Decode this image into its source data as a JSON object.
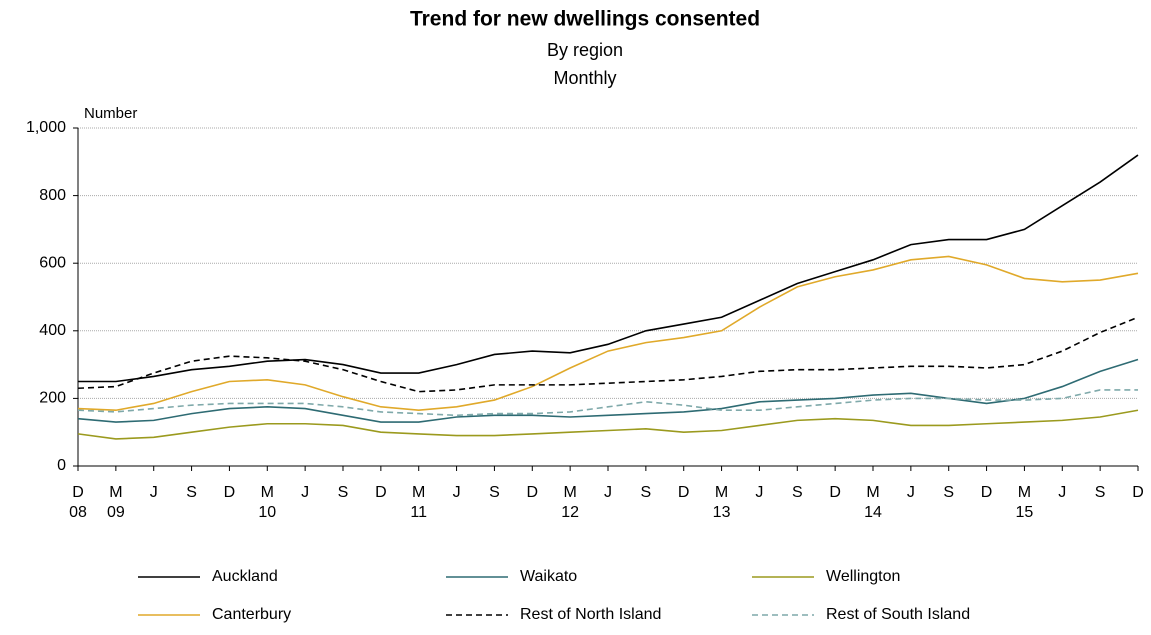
{
  "chart_data": {
    "type": "line",
    "title": "Trend for new dwellings consented",
    "subtitle": "By region",
    "subtitle2": "Monthly",
    "y_label": "Number",
    "categories": [
      "D",
      "M",
      "J",
      "S",
      "D",
      "M",
      "J",
      "S",
      "D",
      "M",
      "J",
      "S",
      "D",
      "M",
      "J",
      "S",
      "D",
      "M",
      "J",
      "S",
      "D",
      "M",
      "J",
      "S",
      "D",
      "M",
      "J",
      "S",
      "D"
    ],
    "x_sublabels": [
      "08",
      "09",
      null,
      null,
      null,
      "10",
      null,
      null,
      null,
      "11",
      null,
      null,
      null,
      "12",
      null,
      null,
      null,
      "13",
      null,
      null,
      null,
      "14",
      null,
      null,
      null,
      "15",
      null,
      null,
      null
    ],
    "ylim": [
      0,
      1000
    ],
    "yticks": [
      0,
      200,
      400,
      600,
      800,
      {
        "value": 1000,
        "label": "1,000"
      }
    ],
    "grid": true,
    "series": [
      {
        "name": "Auckland",
        "color": "#000000",
        "dash": false,
        "values": [
          250,
          250,
          265,
          285,
          295,
          310,
          315,
          300,
          275,
          275,
          300,
          330,
          340,
          335,
          360,
          400,
          420,
          440,
          490,
          540,
          575,
          610,
          655,
          670,
          670,
          700,
          770,
          840,
          920
        ]
      },
      {
        "name": "Waikato",
        "color": "#2e6b73",
        "dash": false,
        "values": [
          140,
          130,
          135,
          155,
          170,
          175,
          170,
          150,
          130,
          130,
          145,
          150,
          150,
          145,
          150,
          155,
          160,
          170,
          190,
          195,
          200,
          210,
          215,
          200,
          185,
          200,
          235,
          280,
          315
        ]
      },
      {
        "name": "Wellington",
        "color": "#9b9a1e",
        "dash": false,
        "values": [
          95,
          80,
          85,
          100,
          115,
          125,
          125,
          120,
          100,
          95,
          90,
          90,
          95,
          100,
          105,
          110,
          100,
          105,
          120,
          135,
          140,
          135,
          120,
          120,
          125,
          130,
          135,
          145,
          165
        ]
      },
      {
        "name": "Canterbury",
        "color": "#e0a92a",
        "dash": false,
        "values": [
          170,
          165,
          185,
          220,
          250,
          255,
          240,
          205,
          175,
          165,
          175,
          195,
          235,
          290,
          340,
          365,
          380,
          400,
          470,
          530,
          560,
          580,
          610,
          620,
          595,
          555,
          545,
          550,
          570
        ]
      },
      {
        "name": "Rest of North Island",
        "color": "#000000",
        "dash": true,
        "values": [
          230,
          235,
          275,
          310,
          325,
          320,
          310,
          285,
          250,
          220,
          225,
          240,
          240,
          240,
          245,
          250,
          255,
          265,
          280,
          285,
          285,
          290,
          295,
          295,
          290,
          300,
          340,
          395,
          440
        ]
      },
      {
        "name": "Rest of South Island",
        "color": "#7fa9aa",
        "dash": true,
        "values": [
          165,
          160,
          170,
          180,
          185,
          185,
          185,
          175,
          160,
          155,
          150,
          155,
          155,
          160,
          175,
          190,
          180,
          165,
          165,
          175,
          185,
          195,
          200,
          200,
          195,
          195,
          200,
          225,
          225
        ]
      }
    ]
  }
}
